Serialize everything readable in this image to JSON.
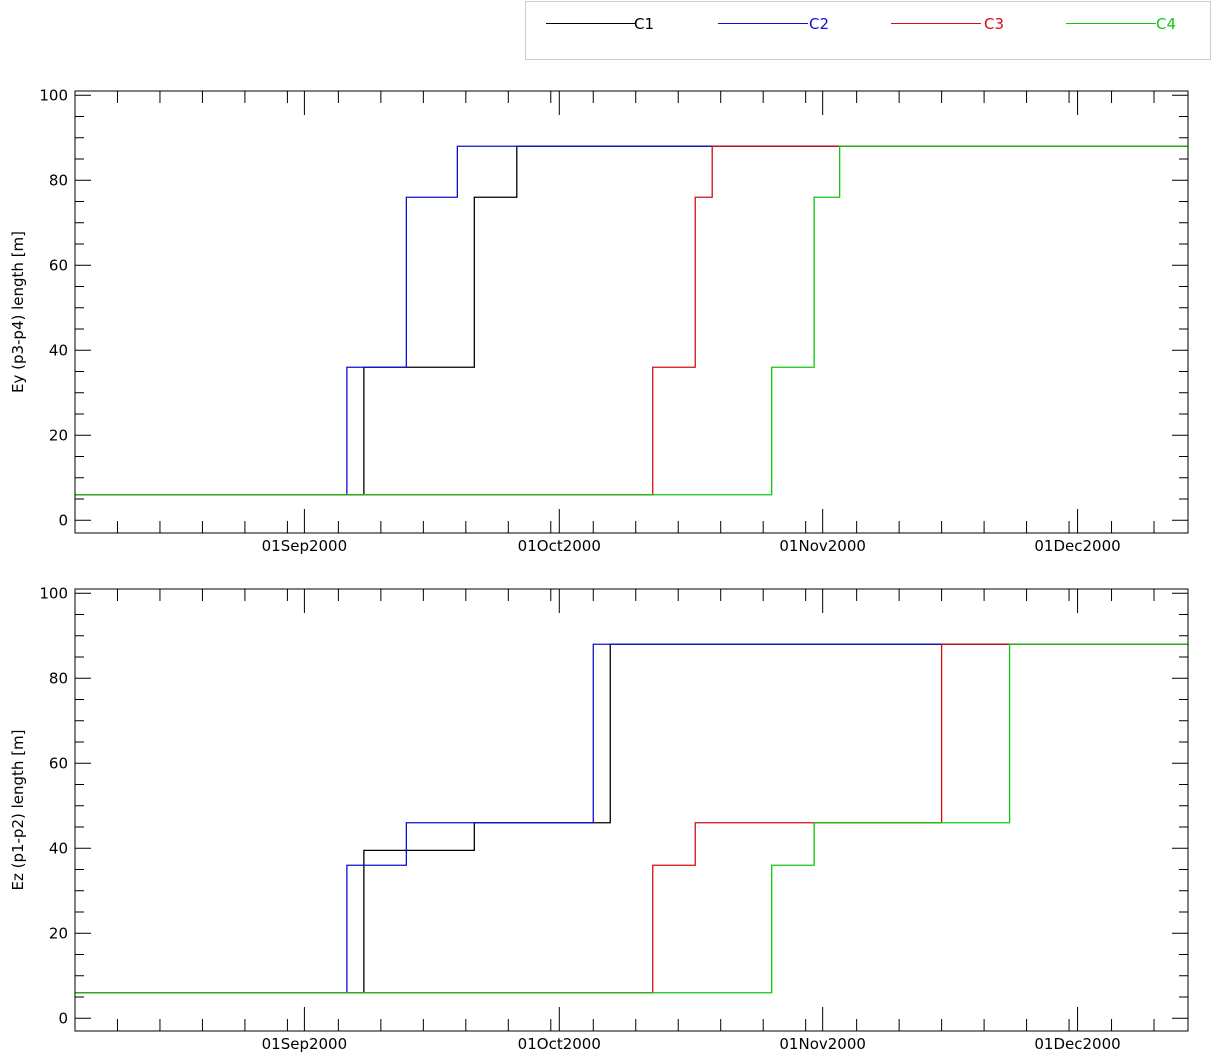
{
  "legend": {
    "entries": [
      {
        "name": "C1",
        "color": "#000000"
      },
      {
        "name": "C2",
        "color": "#1010d0"
      },
      {
        "name": "C3",
        "color": "#d01010"
      },
      {
        "name": "C4",
        "color": "#10c810"
      }
    ]
  },
  "chart_data": [
    {
      "type": "line",
      "title": "",
      "xlabel": "",
      "ylabel": "Ey (p3-p4) length [m]",
      "x_type": "date",
      "xlim": [
        "2000-08-05",
        "2000-12-14"
      ],
      "ylim": [
        -3,
        101
      ],
      "x_ticks": [
        "2000-09-01",
        "2000-10-01",
        "2000-11-01",
        "2000-12-01"
      ],
      "x_tick_labels": [
        "01Sep2000",
        "01Oct2000",
        "01Nov2000",
        "01Dec2000"
      ],
      "y_ticks": [
        0,
        20,
        40,
        60,
        80,
        100
      ],
      "step": "post",
      "grid": false,
      "legend_position": "top-right",
      "series": [
        {
          "name": "C1",
          "color": "#000000",
          "x": [
            "2000-08-05",
            "2000-09-08",
            "2000-09-08",
            "2000-09-21",
            "2000-09-21",
            "2000-09-26",
            "2000-09-26",
            "2000-12-14"
          ],
          "y": [
            6,
            6,
            36,
            36,
            76,
            76,
            88,
            88
          ]
        },
        {
          "name": "C2",
          "color": "#1010d0",
          "x": [
            "2000-08-05",
            "2000-09-06",
            "2000-09-06",
            "2000-09-13",
            "2000-09-13",
            "2000-09-19",
            "2000-09-19",
            "2000-12-14"
          ],
          "y": [
            6,
            6,
            36,
            36,
            76,
            76,
            88,
            88
          ]
        },
        {
          "name": "C3",
          "color": "#d01010",
          "x": [
            "2000-08-05",
            "2000-10-12",
            "2000-10-12",
            "2000-10-17",
            "2000-10-17",
            "2000-10-19",
            "2000-10-19",
            "2000-12-14"
          ],
          "y": [
            6,
            6,
            36,
            36,
            76,
            76,
            88,
            88
          ]
        },
        {
          "name": "C4",
          "color": "#10c810",
          "x": [
            "2000-08-05",
            "2000-10-26",
            "2000-10-26",
            "2000-10-31",
            "2000-10-31",
            "2000-11-03",
            "2000-11-03",
            "2000-12-14"
          ],
          "y": [
            6,
            6,
            36,
            36,
            76,
            76,
            88,
            88
          ]
        }
      ]
    },
    {
      "type": "line",
      "title": "",
      "xlabel": "",
      "ylabel": "Ez (p1-p2) length [m]",
      "x_type": "date",
      "xlim": [
        "2000-08-05",
        "2000-12-14"
      ],
      "ylim": [
        -3,
        101
      ],
      "x_ticks": [
        "2000-09-01",
        "2000-10-01",
        "2000-11-01",
        "2000-12-01"
      ],
      "x_tick_labels": [
        "01Sep2000",
        "01Oct2000",
        "01Nov2000",
        "01Dec2000"
      ],
      "y_ticks": [
        0,
        20,
        40,
        60,
        80,
        100
      ],
      "step": "post",
      "grid": false,
      "legend_position": "top-right",
      "series": [
        {
          "name": "C1",
          "color": "#000000",
          "x": [
            "2000-08-05",
            "2000-09-08",
            "2000-09-08",
            "2000-09-21",
            "2000-09-21",
            "2000-10-07",
            "2000-10-07",
            "2000-12-14"
          ],
          "y": [
            6,
            6,
            39.5,
            39.5,
            46,
            46,
            88,
            88
          ]
        },
        {
          "name": "C2",
          "color": "#1010d0",
          "x": [
            "2000-08-05",
            "2000-09-06",
            "2000-09-06",
            "2000-09-13",
            "2000-09-13",
            "2000-10-05",
            "2000-10-05",
            "2000-12-14"
          ],
          "y": [
            6,
            6,
            36,
            36,
            46,
            46,
            88,
            88
          ]
        },
        {
          "name": "C3",
          "color": "#d01010",
          "x": [
            "2000-08-05",
            "2000-10-12",
            "2000-10-12",
            "2000-10-17",
            "2000-10-17",
            "2000-11-15",
            "2000-11-15",
            "2000-12-14"
          ],
          "y": [
            6,
            6,
            36,
            36,
            46,
            46,
            88,
            88
          ]
        },
        {
          "name": "C4",
          "color": "#10c810",
          "x": [
            "2000-08-05",
            "2000-10-26",
            "2000-10-26",
            "2000-10-31",
            "2000-10-31",
            "2000-11-23",
            "2000-11-23",
            "2000-12-14"
          ],
          "y": [
            6,
            6,
            36,
            36,
            46,
            46,
            88,
            88
          ]
        }
      ]
    }
  ]
}
